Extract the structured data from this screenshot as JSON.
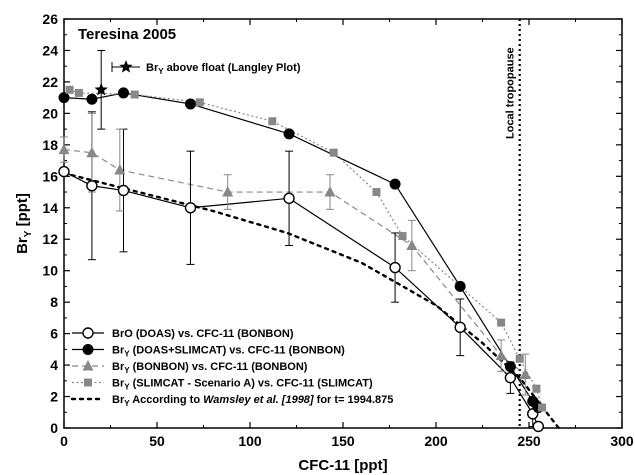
{
  "chart_data": {
    "type": "line",
    "title": "Teresina 2005",
    "xlabel": "CFC-11  [ppt]",
    "ylabel_main": "Br",
    "ylabel_sub": "Y",
    "ylabel_rest": "  [ppt]",
    "xlim": [
      0,
      300
    ],
    "ylim": [
      0,
      26
    ],
    "xticks": [
      "0",
      "50",
      "100",
      "150",
      "200",
      "250",
      "300"
    ],
    "yticks": [
      "0",
      "2",
      "4",
      "6",
      "8",
      "10",
      "12",
      "14",
      "16",
      "18",
      "20",
      "22",
      "24",
      "26"
    ],
    "tropopause": {
      "x": 245,
      "label": "Local tropopause"
    },
    "float_point": {
      "x": 20,
      "y": 21.5,
      "err": 2.5,
      "legend_pre": "Br",
      "legend_sub": "Y",
      "legend_post": " above float  (Langley Plot)"
    },
    "series": [
      {
        "legend_pre": "BrO (DOAS)  vs.  CFC-11 (BONBON)",
        "color": "#000000",
        "marker": "circle-open",
        "line": "solid",
        "x": [
          0,
          15,
          32,
          68,
          121,
          178,
          213,
          240,
          252,
          255
        ],
        "y": [
          16.3,
          15.4,
          15.1,
          14.0,
          14.6,
          10.2,
          6.4,
          3.2,
          0.9,
          0.1
        ],
        "err": [
          0,
          4.7,
          3.9,
          3.6,
          3.0,
          2.2,
          1.8,
          1.0,
          0.8,
          0
        ],
        "legend_cap": "BrO (DOAS)  vs.  CFC-11 (BONBON)"
      },
      {
        "legend_pre": "Br",
        "legend_sub": "Y",
        "legend_post": "  (DOAS+SLIMCAT)  vs.  CFC-11 (BONBON)",
        "color": "#000000",
        "marker": "circle-filled",
        "line": "solid",
        "x": [
          0,
          15,
          32,
          68,
          121,
          178,
          213,
          240,
          252,
          255
        ],
        "y": [
          21.0,
          20.9,
          21.3,
          20.6,
          18.7,
          15.5,
          9.0,
          3.9,
          1.7,
          1.3
        ],
        "err": [
          0,
          0,
          0,
          0,
          0,
          0,
          0,
          0,
          0,
          0
        ]
      },
      {
        "legend_pre": "Br",
        "legend_sub": "Y",
        "legend_post": "  (BONBON)  vs.  CFC-11 (BONBON)",
        "color": "#888888",
        "marker": "triangle",
        "line": "dashed",
        "x": [
          0,
          15,
          30,
          88,
          143,
          187,
          235,
          248
        ],
        "y": [
          17.7,
          17.5,
          16.4,
          15.0,
          15.0,
          11.6,
          4.6,
          3.4
        ],
        "err": [
          0.8,
          2.5,
          2.6,
          1.1,
          1.1,
          1.6,
          1.0,
          1.3
        ]
      },
      {
        "legend_pre": "Br",
        "legend_sub": "Y",
        "legend_post": "  (SLIMCAT - Scenario A)  vs.  CFC-11 (SLIMCAT)",
        "color": "#888888",
        "marker": "square",
        "line": "dotted",
        "x": [
          3,
          8,
          38,
          73,
          112,
          145,
          168,
          182,
          235,
          245,
          254,
          257
        ],
        "y": [
          21.5,
          21.3,
          21.2,
          20.7,
          19.5,
          17.5,
          15.0,
          12.2,
          6.7,
          4.4,
          2.5,
          1.3
        ],
        "err": [
          0,
          0,
          0,
          0,
          0,
          0,
          0,
          0,
          0,
          0,
          0,
          0
        ]
      }
    ],
    "wamsley": {
      "legend_pre": "Br",
      "legend_sub": "Y",
      "legend_mid": " According to ",
      "legend_ital": "Wamsley et al. [1998]",
      "legend_post": " for t= 1994.875",
      "x": [
        0,
        40,
        80,
        120,
        160,
        200,
        225,
        245,
        258,
        266
      ],
      "y": [
        16.2,
        15.0,
        13.8,
        12.4,
        10.5,
        7.8,
        5.4,
        3.2,
        1.2,
        0
      ]
    }
  }
}
